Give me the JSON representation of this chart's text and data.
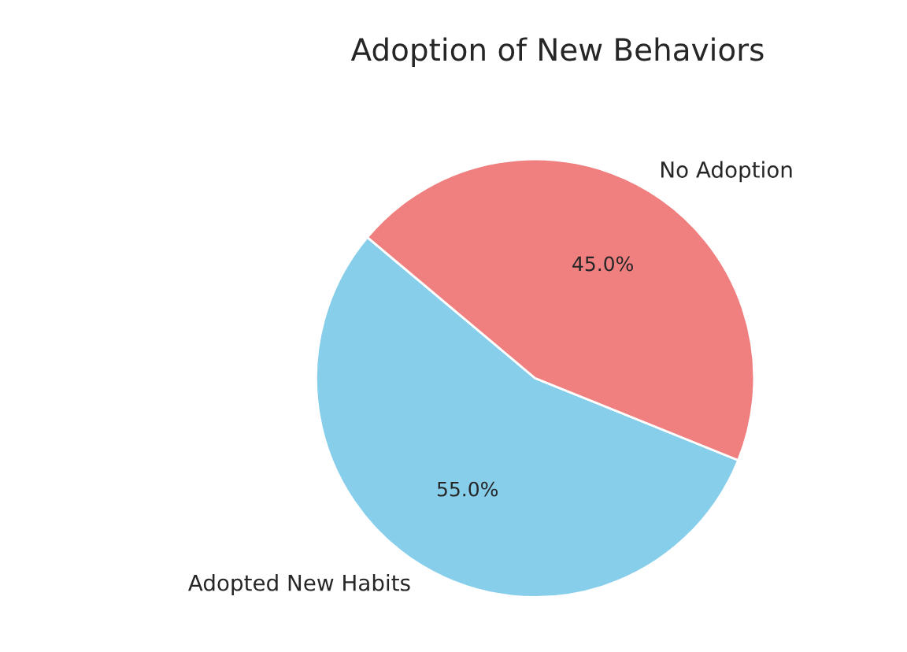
{
  "chart_data": {
    "type": "pie",
    "title": "Adoption of New Behaviors",
    "categories": [
      "Adopted New Habits",
      "No Adoption"
    ],
    "values": [
      55,
      45
    ],
    "value_labels": [
      "55.0%",
      "45.0%"
    ],
    "colors": [
      "#87ceeb",
      "#f08080"
    ]
  }
}
